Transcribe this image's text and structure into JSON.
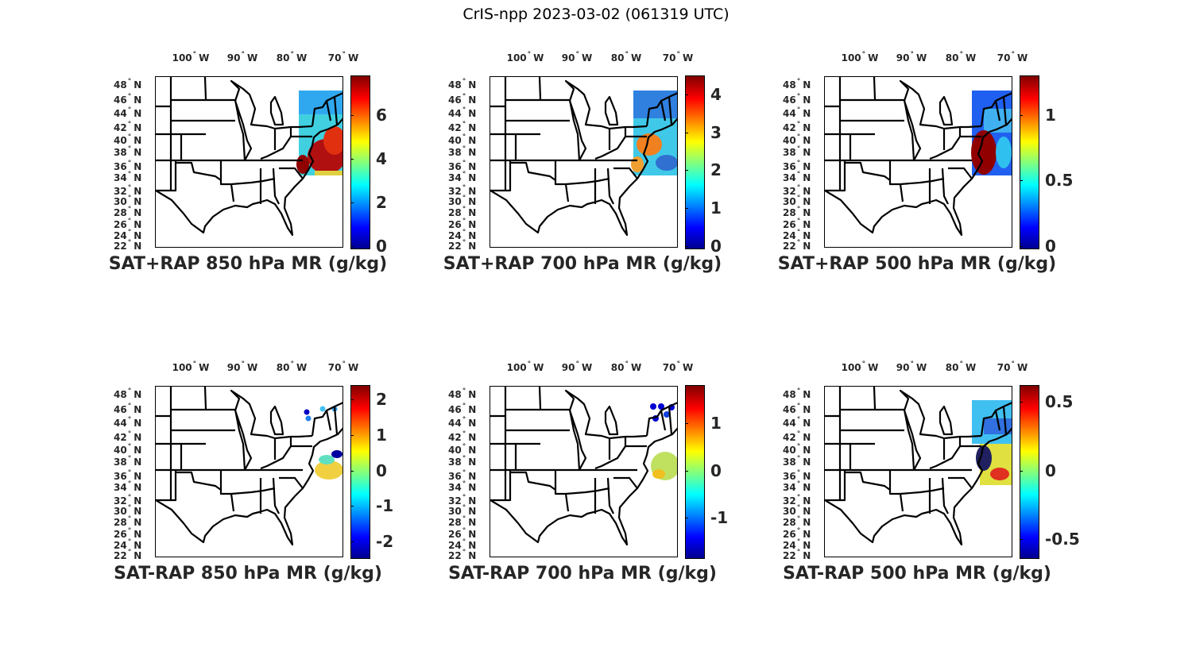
{
  "figure_title": "CrIS-npp 2023-03-02 (061319 UTC)",
  "lon_labels": [
    "100",
    "90",
    "80",
    "70"
  ],
  "lon_suffix": "W",
  "lat_labels": [
    "48",
    "46",
    "44",
    "42",
    "40",
    "38",
    "36",
    "34",
    "32",
    "30",
    "28",
    "26",
    "24",
    "22"
  ],
  "lat_suffix": "N",
  "degree_symbol": "°",
  "panels": [
    {
      "title": "SAT+RAP 850 hPa MR (g/kg)",
      "cmin": 0,
      "cmax": 7.8,
      "ticks": [
        "0",
        "2",
        "4",
        "6"
      ],
      "overlay": "p850sum"
    },
    {
      "title": "SAT+RAP 700 hPa MR (g/kg)",
      "cmin": 0,
      "cmax": 4.5,
      "ticks": [
        "0",
        "1",
        "2",
        "3",
        "4"
      ],
      "overlay": "p700sum"
    },
    {
      "title": "SAT+RAP 500 hPa MR (g/kg)",
      "cmin": 0,
      "cmax": 1.3,
      "ticks": [
        "0",
        "0.5",
        "1"
      ],
      "overlay": "p500sum"
    },
    {
      "title": "SAT-RAP 850 hPa MR (g/kg)",
      "cmin": -2.4,
      "cmax": 2.4,
      "ticks": [
        "-2",
        "-1",
        "0",
        "1",
        "2"
      ],
      "overlay": "p850diff"
    },
    {
      "title": "SAT-RAP 700 hPa MR (g/kg)",
      "cmin": -1.8,
      "cmax": 1.8,
      "ticks": [
        "-1",
        "0",
        "1"
      ],
      "overlay": "p700diff"
    },
    {
      "title": "SAT-RAP 500 hPa MR (g/kg)",
      "cmin": -0.62,
      "cmax": 0.62,
      "ticks": [
        "-0.5",
        "0",
        "0.5"
      ],
      "overlay": "p500diff"
    }
  ],
  "colormap": [
    "#00008f",
    "#0000ff",
    "#00ffff",
    "#ffff00",
    "#ff0000",
    "#800000"
  ]
}
